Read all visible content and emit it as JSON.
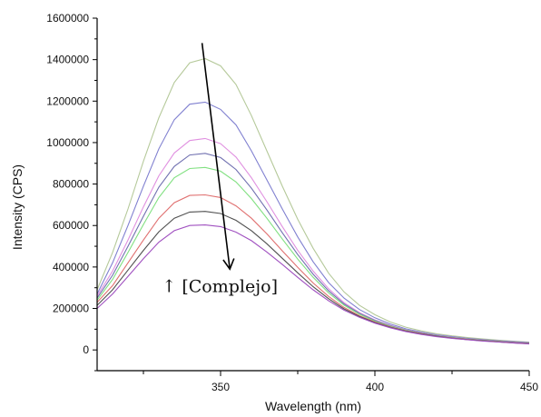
{
  "chart_data": {
    "type": "line",
    "title": "",
    "xlabel": "Wavelength (nm)",
    "ylabel": "Intensity (CPS)",
    "xlim": [
      310,
      450
    ],
    "ylim": [
      -100000,
      1600000
    ],
    "x_ticks": [
      350,
      400,
      450
    ],
    "y_ticks": [
      0,
      200000,
      400000,
      600000,
      800000,
      1000000,
      1200000,
      1400000,
      1600000
    ],
    "grid": false,
    "legend": "none",
    "x": [
      310,
      315,
      320,
      325,
      330,
      335,
      340,
      345,
      350,
      355,
      360,
      365,
      370,
      375,
      380,
      385,
      390,
      395,
      400,
      405,
      410,
      415,
      420,
      425,
      430,
      435,
      440,
      445,
      450
    ],
    "series": [
      {
        "color": "#b5c99a",
        "values": [
          290000,
          470000,
          680000,
          910000,
          1120000,
          1290000,
          1385000,
          1405000,
          1370000,
          1280000,
          1130000,
          960000,
          790000,
          630000,
          490000,
          370000,
          280000,
          215000,
          170000,
          135000,
          110000,
          92000,
          78000,
          68000,
          60000,
          53000,
          47000,
          42000,
          38000
        ]
      },
      {
        "color": "#8080d0",
        "values": [
          270000,
          420000,
          600000,
          790000,
          970000,
          1110000,
          1185000,
          1195000,
          1160000,
          1085000,
          960000,
          820000,
          680000,
          545000,
          425000,
          325000,
          250000,
          195000,
          155000,
          125000,
          102000,
          86000,
          73000,
          64000,
          56000,
          50000,
          44000,
          40000,
          36000
        ]
      },
      {
        "color": "#e090e0",
        "values": [
          260000,
          380000,
          530000,
          690000,
          840000,
          950000,
          1010000,
          1020000,
          995000,
          930000,
          830000,
          715000,
          595000,
          480000,
          380000,
          295000,
          228000,
          180000,
          145000,
          118000,
          97000,
          82000,
          70000,
          61000,
          54000,
          48000,
          43000,
          38000,
          34000
        ]
      },
      {
        "color": "#7070b0",
        "values": [
          250000,
          360000,
          500000,
          645000,
          785000,
          885000,
          940000,
          948000,
          928000,
          870000,
          780000,
          675000,
          565000,
          460000,
          365000,
          285000,
          222000,
          176000,
          142000,
          116000,
          96000,
          81000,
          69000,
          60000,
          53000,
          47000,
          42000,
          37000,
          33000
        ]
      },
      {
        "color": "#80e080",
        "values": [
          240000,
          340000,
          470000,
          605000,
          735000,
          830000,
          875000,
          880000,
          862000,
          810000,
          730000,
          635000,
          535000,
          438000,
          350000,
          275000,
          216000,
          172000,
          139000,
          114000,
          95000,
          80000,
          68000,
          59000,
          52000,
          46000,
          41000,
          36000,
          32000
        ]
      },
      {
        "color": "#e07070",
        "values": [
          230000,
          310000,
          420000,
          530000,
          635000,
          710000,
          745000,
          748000,
          735000,
          695000,
          635000,
          560000,
          478000,
          398000,
          323000,
          258000,
          205000,
          165000,
          135000,
          111000,
          93000,
          79000,
          67000,
          58000,
          51000,
          45000,
          40000,
          35000,
          31000
        ]
      },
      {
        "color": "#505050",
        "values": [
          215000,
          290000,
          385000,
          480000,
          570000,
          635000,
          665000,
          668000,
          658000,
          625000,
          575000,
          512000,
          442000,
          372000,
          305000,
          247000,
          198000,
          161000,
          132000,
          109000,
          91000,
          77000,
          66000,
          57000,
          50000,
          44000,
          39000,
          34000,
          30000
        ]
      },
      {
        "color": "#a050c0",
        "values": [
          200000,
          270000,
          355000,
          440000,
          520000,
          575000,
          600000,
          603000,
          595000,
          568000,
          527000,
          472000,
          412000,
          350000,
          290000,
          237000,
          192000,
          157000,
          129000,
          107000,
          89000,
          75000,
          64000,
          56000,
          49000,
          43000,
          38000,
          33000,
          29000
        ]
      }
    ],
    "annotations": [
      {
        "type": "arrow",
        "from": [
          344,
          1480000
        ],
        "to": [
          353,
          390000
        ]
      },
      {
        "type": "text",
        "text": "↑ [Complejo]",
        "x": 331,
        "y": 280000
      }
    ]
  }
}
